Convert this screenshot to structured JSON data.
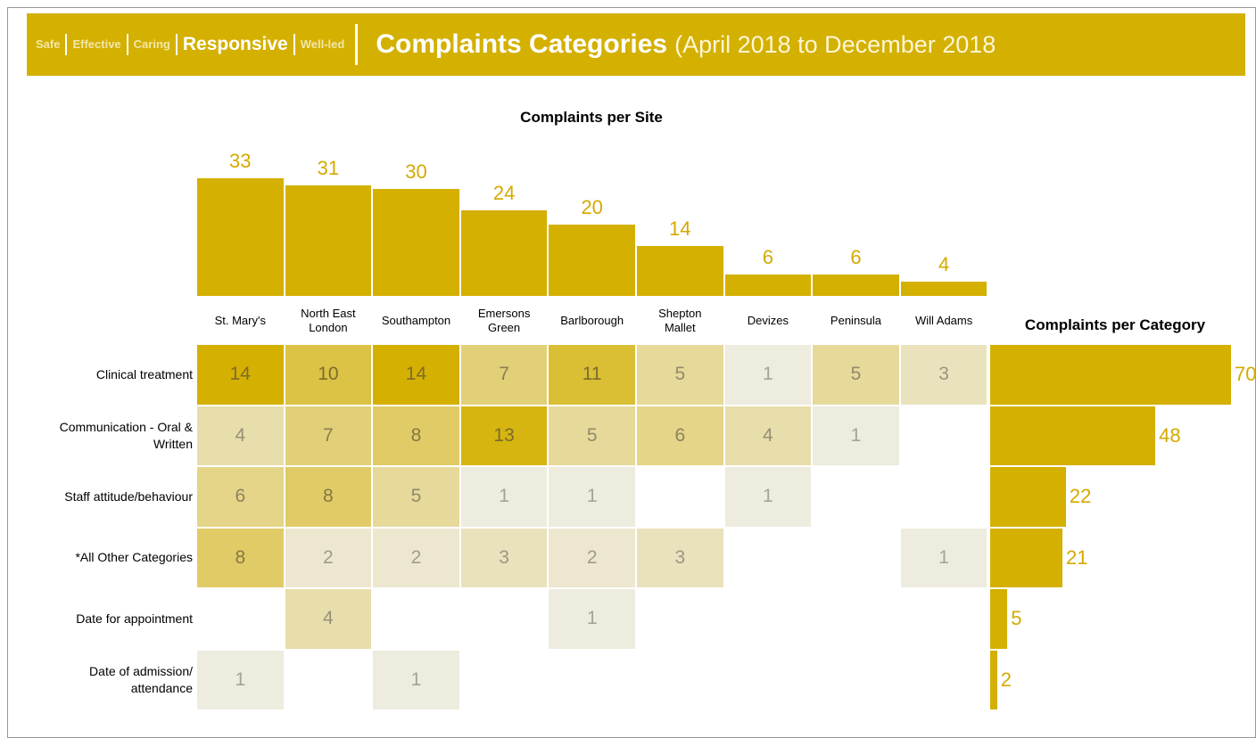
{
  "header": {
    "nav": [
      "Safe",
      "Effective",
      "Caring",
      "Responsive",
      "Well-led"
    ],
    "title": "Complaints Categories",
    "subtitle": "(April 2018 to December 2018"
  },
  "chart_data": [
    {
      "type": "bar",
      "title": "Complaints per Site",
      "categories": [
        "St. Mary's",
        "North East London",
        "Southampton",
        "Emersons Green",
        "Barlborough",
        "Shepton Mallet",
        "Devizes",
        "Peninsula",
        "Will Adams"
      ],
      "values": [
        33,
        31,
        30,
        24,
        20,
        14,
        6,
        6,
        4
      ],
      "color": "#d4b000"
    },
    {
      "type": "heatmap",
      "rows": [
        "Clinical treatment",
        "Communication - Oral & Written",
        "Staff attitude/behaviour",
        "*All Other Categories",
        "Date for appointment",
        "Date of admission/ attendance"
      ],
      "values": [
        [
          14,
          10,
          14,
          7,
          11,
          5,
          1,
          5,
          3
        ],
        [
          4,
          7,
          8,
          13,
          5,
          6,
          4,
          1,
          null
        ],
        [
          6,
          8,
          5,
          1,
          1,
          null,
          1,
          null,
          null
        ],
        [
          8,
          2,
          2,
          3,
          2,
          3,
          null,
          null,
          1
        ],
        [
          null,
          4,
          null,
          null,
          1,
          null,
          null,
          null,
          null
        ],
        [
          1,
          null,
          1,
          null,
          null,
          null,
          null,
          null,
          null
        ]
      ],
      "color_low": "#f0f0f0",
      "color_high": "#d4b000"
    },
    {
      "type": "hbar",
      "title": "Complaints per Category",
      "values": [
        70,
        48,
        22,
        21,
        5,
        2
      ],
      "color": "#d4b000"
    }
  ]
}
